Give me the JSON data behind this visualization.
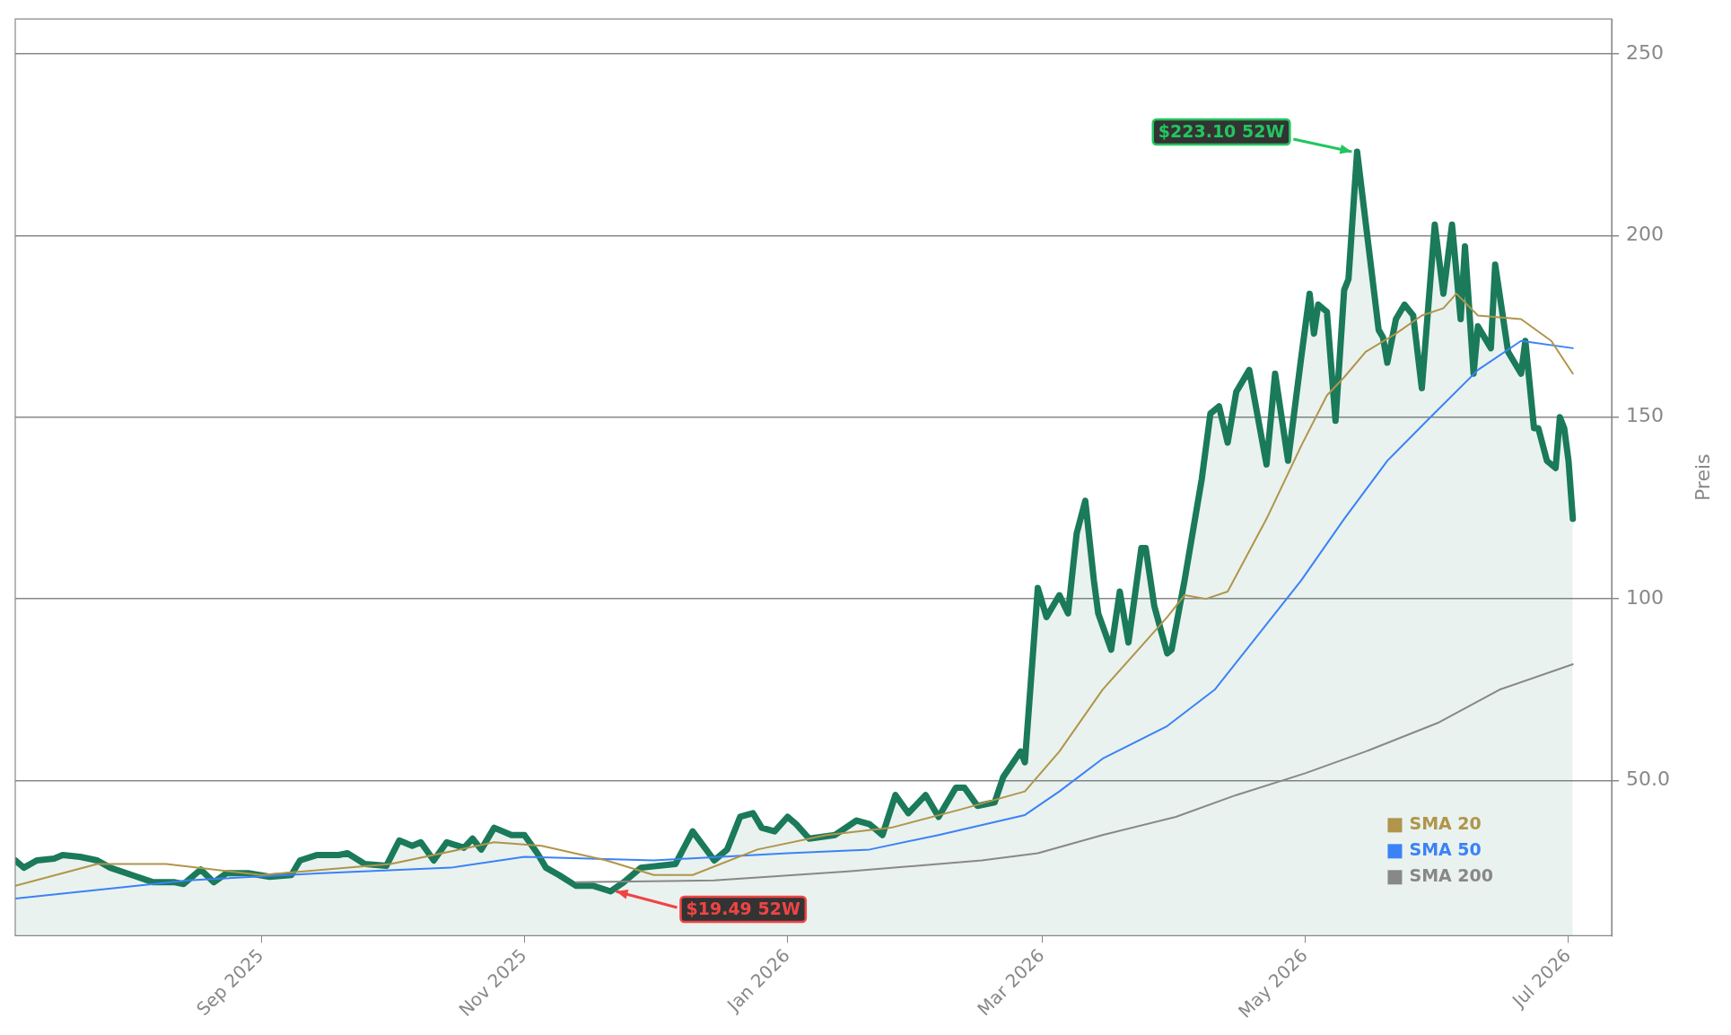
{
  "chart_data": {
    "type": "line",
    "ylabel": "Preis",
    "xlim": [
      "2025-07-06",
      "2026-07-11"
    ],
    "ylim": [
      7.3,
      259.6
    ],
    "xticks": [
      {
        "value": "2025-09-01",
        "label": "Sep 2025"
      },
      {
        "value": "2025-11-01",
        "label": "Nov 2025"
      },
      {
        "value": "2026-01-01",
        "label": "Jan 2026"
      },
      {
        "value": "2026-03-01",
        "label": "Mar 2026"
      },
      {
        "value": "2026-05-01",
        "label": "May 2026"
      },
      {
        "value": "2026-07-01",
        "label": "Jul 2026"
      }
    ],
    "yticks": [
      {
        "value": 50,
        "label": "50.0"
      },
      100,
      150,
      200,
      250
    ],
    "grid": "y",
    "legend": "bottom right",
    "marker": "none",
    "line_style": "solid",
    "series": [
      {
        "type": "area",
        "color": "#1a7a5a",
        "x": [
          "2025-07-06",
          "2025-07-08",
          "2025-07-11",
          "2025-07-15",
          "2025-07-17",
          "2025-07-21",
          "2025-07-25",
          "2025-07-28",
          "2025-08-02",
          "2025-08-07",
          "2025-08-12",
          "2025-08-14",
          "2025-08-18",
          "2025-08-21",
          "2025-08-24",
          "2025-08-29",
          "2025-09-03",
          "2025-09-08",
          "2025-09-10",
          "2025-09-14",
          "2025-09-19",
          "2025-09-21",
          "2025-09-25",
          "2025-09-30",
          "2025-10-03",
          "2025-10-06",
          "2025-10-08",
          "2025-10-11",
          "2025-10-14",
          "2025-10-18",
          "2025-10-20",
          "2025-10-22",
          "2025-10-25",
          "2025-10-29",
          "2025-11-01",
          "2025-11-04",
          "2025-11-06",
          "2025-11-09",
          "2025-11-13",
          "2025-11-17",
          "2025-11-21",
          "2025-11-24",
          "2025-11-28",
          "2025-12-06",
          "2025-12-10",
          "2025-12-15",
          "2025-12-18",
          "2025-12-21",
          "2025-12-24",
          "2025-12-26",
          "2025-12-29",
          "2026-01-01",
          "2026-01-03",
          "2026-01-06",
          "2026-01-12",
          "2026-01-17",
          "2026-01-20",
          "2026-01-23",
          "2026-01-26",
          "2026-01-29",
          "2026-02-02",
          "2026-02-05",
          "2026-02-09",
          "2026-02-11",
          "2026-02-14",
          "2026-02-18",
          "2026-02-20",
          "2026-02-24",
          "2026-02-25",
          "2026-02-28",
          "2026-03-02",
          "2026-03-05",
          "2026-03-07",
          "2026-03-09",
          "2026-03-11",
          "2026-03-13",
          "2026-03-14",
          "2026-03-17",
          "2026-03-19",
          "2026-03-21",
          "2026-03-24",
          "2026-03-25",
          "2026-03-27",
          "2026-03-30",
          "2026-03-31",
          "2026-04-03",
          "2026-04-07",
          "2026-04-09",
          "2026-04-11",
          "2026-04-13",
          "2026-04-15",
          "2026-04-18",
          "2026-04-20",
          "2026-04-22",
          "2026-04-24",
          "2026-04-27",
          "2026-04-30",
          "2026-05-02",
          "2026-05-03",
          "2026-05-04",
          "2026-05-06",
          "2026-05-08",
          "2026-05-10",
          "2026-05-11",
          "2026-05-13",
          "2026-05-18",
          "2026-05-19",
          "2026-05-20",
          "2026-05-22",
          "2026-05-24",
          "2026-05-26",
          "2026-05-28",
          "2026-05-31",
          "2026-06-02",
          "2026-06-04",
          "2026-06-06",
          "2026-06-07",
          "2026-06-09",
          "2026-06-10",
          "2026-06-13",
          "2026-06-14",
          "2026-06-17",
          "2026-06-20",
          "2026-06-21",
          "2026-06-23",
          "2026-06-24",
          "2026-06-26",
          "2026-06-28",
          "2026-06-29",
          "2026-06-30",
          "2026-07-01",
          "2026-07-02"
        ],
        "values": [
          28,
          26,
          28,
          28.5,
          29.5,
          29,
          28,
          26,
          24,
          22,
          22,
          21.5,
          25.5,
          22,
          24.5,
          24.5,
          23.5,
          24,
          28,
          29.5,
          29.5,
          30,
          27,
          26.5,
          33.5,
          32,
          33,
          28,
          33,
          31.5,
          34,
          31,
          37,
          35,
          35,
          30,
          26,
          24,
          21,
          21,
          19.49,
          22,
          26,
          27,
          36,
          28,
          31,
          40,
          41,
          37,
          36,
          40,
          38,
          34,
          35,
          39,
          38,
          35,
          46,
          41,
          46,
          40,
          48,
          48,
          43,
          44,
          51,
          58,
          55,
          103,
          95,
          101,
          96,
          118,
          127,
          105,
          96,
          86,
          102,
          88,
          114,
          114,
          98,
          85,
          86,
          105,
          133,
          151,
          153,
          143,
          157,
          163,
          150,
          137,
          162,
          138,
          166,
          184,
          173,
          181,
          179,
          149,
          185,
          188,
          223.1,
          174,
          172,
          165,
          177,
          181,
          178,
          158,
          203,
          184,
          203,
          177,
          197,
          162,
          175,
          169,
          192,
          168,
          162,
          171,
          147,
          147,
          138,
          136,
          150,
          147,
          138,
          122
        ]
      },
      {
        "type": "line",
        "name": "SMA 20",
        "color": "#b0954a",
        "x": [
          "2025-07-06",
          "2025-07-25",
          "2025-08-10",
          "2025-09-01",
          "2025-10-01",
          "2025-10-25",
          "2025-11-05",
          "2025-11-20",
          "2025-12-01",
          "2025-12-10",
          "2025-12-25",
          "2026-01-10",
          "2026-01-25",
          "2026-02-10",
          "2026-02-25",
          "2026-03-05",
          "2026-03-15",
          "2026-03-30",
          "2026-04-03",
          "2026-04-08",
          "2026-04-13",
          "2026-04-22",
          "2026-04-30",
          "2026-05-06",
          "2026-05-10",
          "2026-05-15",
          "2026-05-22",
          "2026-05-28",
          "2026-06-02",
          "2026-06-05",
          "2026-06-10",
          "2026-06-20",
          "2026-06-27",
          "2026-07-02"
        ],
        "values": [
          21,
          27,
          27,
          24,
          27,
          33,
          32,
          28,
          24,
          24,
          31,
          35,
          37,
          42,
          47,
          58,
          75,
          95,
          101,
          100,
          102,
          122,
          142,
          156,
          161,
          168,
          173,
          178,
          180,
          184,
          178,
          177,
          171,
          162
        ]
      },
      {
        "type": "line",
        "name": "SMA 50",
        "color": "#3b82f6",
        "x": [
          "2025-07-06",
          "2025-08-15",
          "2025-09-15",
          "2025-10-15",
          "2025-11-01",
          "2025-12-01",
          "2026-01-01",
          "2026-01-20",
          "2026-02-05",
          "2026-02-25",
          "2026-03-05",
          "2026-03-15",
          "2026-03-30",
          "2026-04-10",
          "2026-04-20",
          "2026-04-30",
          "2026-05-10",
          "2026-05-20",
          "2026-05-30",
          "2026-06-10",
          "2026-06-20",
          "2026-07-02"
        ],
        "values": [
          17.5,
          22.5,
          24.5,
          26,
          29,
          28,
          30,
          31,
          35,
          40.5,
          47,
          56,
          65,
          75,
          90,
          105,
          122,
          138,
          150,
          163,
          171,
          169
        ]
      },
      {
        "type": "line",
        "name": "SMA 200",
        "color": "#888888",
        "x": [
          "2025-11-13",
          "2025-12-15",
          "2026-01-15",
          "2026-02-15",
          "2026-02-28",
          "2026-03-15",
          "2026-04-01",
          "2026-04-15",
          "2026-05-01",
          "2026-05-15",
          "2026-06-01",
          "2026-06-15",
          "2026-07-02"
        ],
        "values": [
          22,
          22.5,
          25,
          28,
          30,
          35,
          40,
          46,
          52,
          58,
          66,
          75,
          82
        ]
      }
    ],
    "annotations": [
      {
        "text": "$223.10 52W",
        "x": "2026-05-13",
        "y": 223.1
      },
      {
        "text": "$19.49 52W",
        "x": "2025-11-21",
        "y": 19.49
      }
    ]
  }
}
